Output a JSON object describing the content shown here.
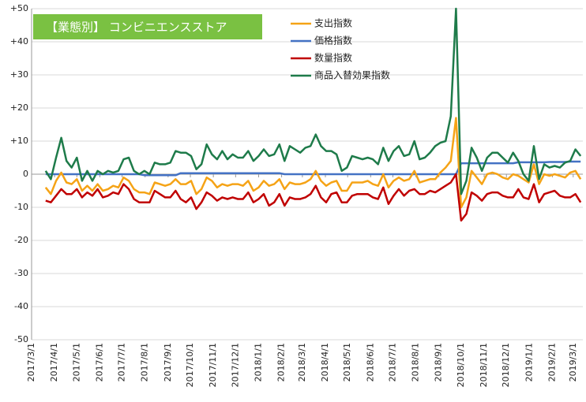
{
  "chart_data": {
    "type": "line",
    "title": "【業態別】 コンビニエンスストア",
    "x": [
      19,
      26,
      33,
      40,
      47,
      54,
      61,
      68,
      75,
      82,
      89,
      96,
      103,
      110,
      117,
      124,
      131,
      138,
      145,
      152,
      159,
      166,
      173,
      180,
      187,
      194,
      201,
      208,
      215,
      222,
      229,
      236,
      243,
      250,
      257,
      264,
      271,
      278,
      285,
      292,
      299,
      306,
      313,
      320,
      327,
      334,
      341,
      348,
      355,
      362,
      369,
      376,
      383,
      390,
      397,
      404,
      411,
      418,
      425,
      432,
      439,
      446,
      453,
      460,
      467,
      474,
      481,
      488,
      495,
      502,
      509,
      516,
      523,
      530,
      537,
      544,
      551,
      558,
      565,
      572,
      579,
      586,
      593,
      600,
      607,
      614,
      621,
      628,
      635,
      642,
      649,
      656,
      663,
      670,
      677,
      684,
      691,
      698,
      705,
      712,
      719,
      726,
      733,
      740
    ],
    "xlim": [
      0,
      743
    ],
    "xticks": [
      {
        "value": 0,
        "label": "2017/3/1"
      },
      {
        "value": 31,
        "label": "2017/4/1"
      },
      {
        "value": 61,
        "label": "2017/5/1"
      },
      {
        "value": 92,
        "label": "2017/6/1"
      },
      {
        "value": 122,
        "label": "2017/7/1"
      },
      {
        "value": 153,
        "label": "2017/8/1"
      },
      {
        "value": 184,
        "label": "2017/9/1"
      },
      {
        "value": 214,
        "label": "2017/10/1"
      },
      {
        "value": 245,
        "label": "2017/11/1"
      },
      {
        "value": 275,
        "label": "2017/12/1"
      },
      {
        "value": 306,
        "label": "2018/1/1"
      },
      {
        "value": 337,
        "label": "2018/2/1"
      },
      {
        "value": 365,
        "label": "2018/3/1"
      },
      {
        "value": 396,
        "label": "2018/4/1"
      },
      {
        "value": 426,
        "label": "2018/5/1"
      },
      {
        "value": 457,
        "label": "2018/6/1"
      },
      {
        "value": 487,
        "label": "2018/7/1"
      },
      {
        "value": 518,
        "label": "2018/8/1"
      },
      {
        "value": 549,
        "label": "2018/9/1"
      },
      {
        "value": 579,
        "label": "2018/10/1"
      },
      {
        "value": 610,
        "label": "2018/11/1"
      },
      {
        "value": 640,
        "label": "2018/12/1"
      },
      {
        "value": 671,
        "label": "2019/1/1"
      },
      {
        "value": 702,
        "label": "2019/2/1"
      },
      {
        "value": 730,
        "label": "2019/3/1"
      }
    ],
    "ylim": [
      -50,
      50
    ],
    "yticks": [
      {
        "value": 50,
        "label": "+50"
      },
      {
        "value": 40,
        "label": "+40"
      },
      {
        "value": 30,
        "label": "+30"
      },
      {
        "value": 20,
        "label": "+20"
      },
      {
        "value": 10,
        "label": "+10"
      },
      0,
      -10,
      -20,
      -30,
      -40,
      -50
    ],
    "grid": true,
    "series": [
      {
        "name": "支出指数",
        "color": "#f5a316",
        "values": [
          -4,
          -6,
          -2,
          0.5,
          -2.5,
          -3,
          -1.5,
          -5,
          -3.5,
          -5,
          -3,
          -5,
          -4.5,
          -3.5,
          -4,
          -1,
          -2,
          -4.5,
          -5.5,
          -5.5,
          -6,
          -2.5,
          -3,
          -3.5,
          -3,
          -1.5,
          -3,
          -3,
          -2,
          -6,
          -4.5,
          -1,
          -2,
          -4,
          -3,
          -3.5,
          -3,
          -3,
          -3.5,
          -2,
          -5,
          -4,
          -2,
          -3.5,
          -3,
          -1.5,
          -4.5,
          -2.5,
          -3,
          -3,
          -2.5,
          -1.5,
          1,
          -2,
          -3.5,
          -2.5,
          -2,
          -5,
          -5,
          -2.5,
          -2.5,
          -2.5,
          -2,
          -3,
          -3.5,
          0,
          -4,
          -2,
          -1,
          -2,
          -1.5,
          1,
          -2.5,
          -2,
          -1.5,
          -1.5,
          0.5,
          2,
          4,
          17,
          -10,
          -7,
          1,
          -1,
          -3,
          0,
          0.5,
          0,
          -1,
          -1.5,
          0,
          -0.5,
          -1.5,
          -2.5,
          3,
          -3,
          0,
          -0.5,
          0,
          -0.5,
          -1,
          0.5,
          1,
          -1.5
        ]
      },
      {
        "name": "価格指数",
        "color": "#4472c4",
        "values": [
          0,
          0,
          0,
          0,
          0,
          0,
          0,
          0,
          0,
          0,
          0,
          0,
          0,
          0,
          0,
          0,
          0,
          0,
          0,
          -0.3,
          -0.3,
          -0.3,
          -0.3,
          -0.3,
          -0.3,
          -0.3,
          0.3,
          0.3,
          0.3,
          0.3,
          0.3,
          0.3,
          0.3,
          0.3,
          0.3,
          0.3,
          0.3,
          0.3,
          0.3,
          0.3,
          0.3,
          0.3,
          0.3,
          0.3,
          0.3,
          0.3,
          0,
          0,
          0,
          0,
          0,
          0,
          0,
          0,
          0,
          0,
          0,
          0,
          0,
          0,
          0,
          0,
          0,
          0,
          0,
          0,
          0,
          0,
          0,
          0,
          0,
          0,
          0,
          0,
          0,
          0,
          0,
          0,
          0,
          0,
          3.3,
          3.3,
          3.3,
          3.3,
          3.3,
          3.3,
          3.3,
          3.3,
          3.3,
          3.3,
          3.3,
          3.6,
          3.6,
          3.6,
          3.6,
          3.6,
          3.6,
          3.7,
          3.7,
          3.7,
          3.7,
          3.8,
          3.8,
          3.8
        ]
      },
      {
        "name": "数量指数",
        "color": "#c00000",
        "values": [
          -8,
          -8.5,
          -6.5,
          -4.5,
          -6,
          -6,
          -4.5,
          -7,
          -5.5,
          -6.5,
          -4.5,
          -7,
          -6.5,
          -5.5,
          -6,
          -3,
          -4.5,
          -7.5,
          -8.5,
          -8.5,
          -8.5,
          -5,
          -6,
          -7,
          -7,
          -5,
          -7.5,
          -8.5,
          -7,
          -10.5,
          -8.5,
          -5.5,
          -6.5,
          -8,
          -7,
          -7.5,
          -7,
          -7.5,
          -7.5,
          -5.5,
          -8.5,
          -7.5,
          -6,
          -9.5,
          -8.5,
          -6,
          -9.5,
          -7,
          -7.5,
          -7.5,
          -7,
          -6,
          -3.5,
          -7,
          -8.5,
          -6,
          -5.5,
          -8.5,
          -8.5,
          -6.5,
          -6,
          -6,
          -6,
          -7,
          -7.5,
          -4,
          -9,
          -6.5,
          -4.5,
          -6.5,
          -5,
          -4.5,
          -6,
          -6,
          -5,
          -5.5,
          -4.5,
          -3.5,
          -2.5,
          0,
          -14,
          -12,
          -5.5,
          -6.5,
          -8,
          -6,
          -5.5,
          -5.5,
          -6.5,
          -7,
          -7,
          -4.5,
          -7,
          -7.5,
          -3,
          -8.5,
          -6,
          -5.5,
          -5,
          -6.5,
          -7,
          -7,
          -6,
          -8.5
        ]
      },
      {
        "name": "商品入替効果指数",
        "color": "#1e7b4a",
        "values": [
          1,
          -1.5,
          5,
          11,
          4,
          2,
          5,
          -2,
          1,
          -2,
          1,
          0,
          1,
          0.5,
          1,
          4.5,
          5,
          1,
          0,
          1,
          0,
          3.5,
          3,
          3,
          3.5,
          7,
          6.5,
          6.5,
          5.5,
          1.5,
          3,
          9,
          6,
          4.5,
          7,
          4.5,
          6,
          5,
          5,
          7,
          4,
          5.5,
          7.5,
          5.5,
          6,
          9,
          4,
          8.5,
          7.5,
          6.5,
          8,
          8.5,
          12,
          8.5,
          7,
          7,
          6,
          1,
          2,
          5.5,
          5,
          4.5,
          5,
          4.5,
          3,
          8,
          4,
          7,
          8.5,
          5.5,
          6,
          10,
          4.5,
          5,
          6.5,
          8.5,
          9.5,
          10,
          17.5,
          50,
          -6,
          -2,
          8,
          5,
          1,
          5,
          6.5,
          6.5,
          5,
          3.5,
          6.5,
          4,
          0,
          -2,
          8.5,
          -1.5,
          3,
          2,
          2.5,
          2,
          3.5,
          4,
          7.5,
          5.5
        ]
      }
    ]
  }
}
